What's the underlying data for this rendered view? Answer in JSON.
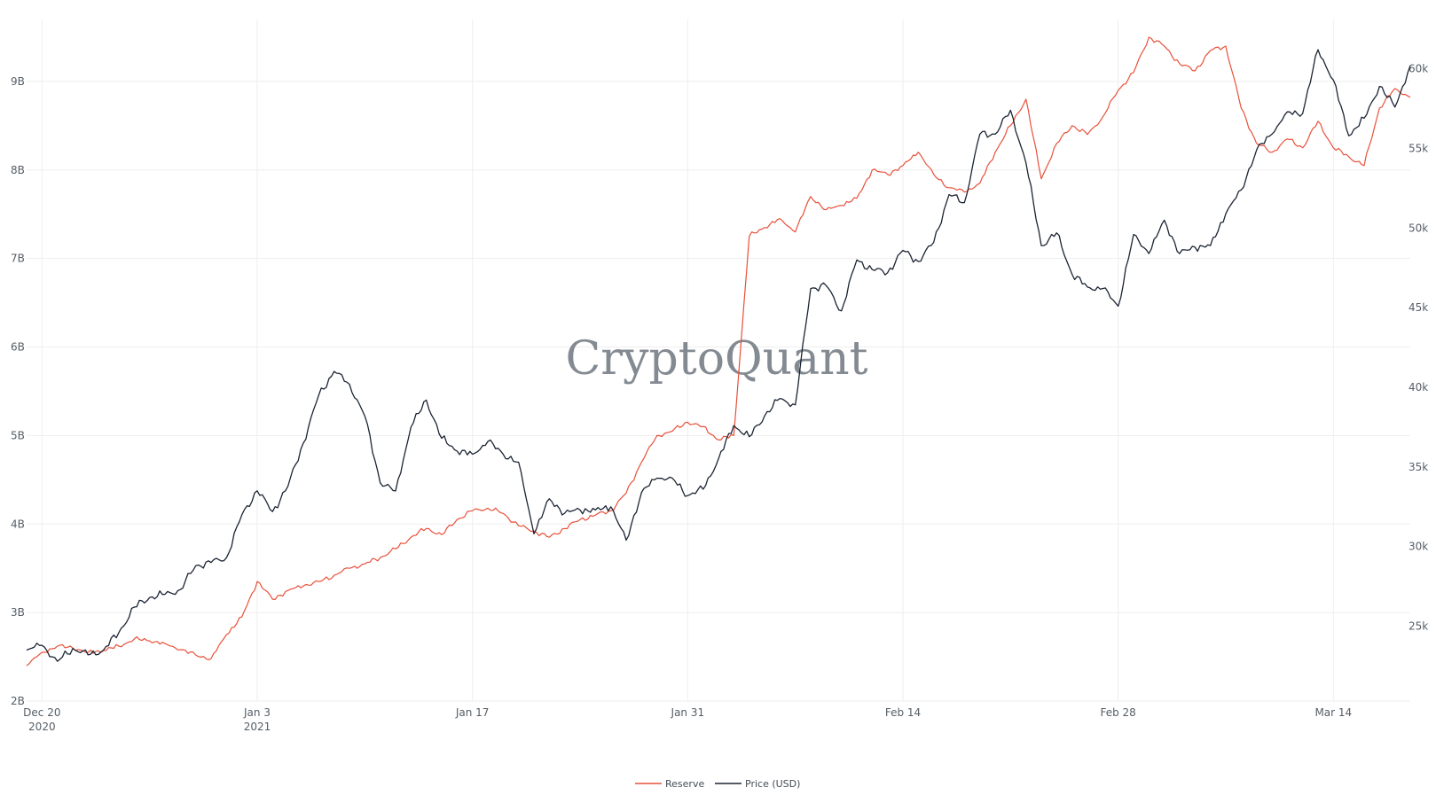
{
  "watermark": "CryptoQuant",
  "colors": {
    "reserve": "#e8503a",
    "price": "#1b2433",
    "grid": "#eeeeee"
  },
  "chart_data": {
    "type": "line",
    "title": "",
    "x_ticks": [
      {
        "label": "Dec 20",
        "sub": "2020",
        "date": "2020-12-20"
      },
      {
        "label": "Jan 3",
        "sub": "2021",
        "date": "2021-01-03"
      },
      {
        "label": "Jan 17",
        "sub": "",
        "date": "2021-01-17"
      },
      {
        "label": "Jan 31",
        "sub": "",
        "date": "2021-01-31"
      },
      {
        "label": "Feb 14",
        "sub": "",
        "date": "2021-02-14"
      },
      {
        "label": "Feb 28",
        "sub": "",
        "date": "2021-02-28"
      },
      {
        "label": "Mar 14",
        "sub": "",
        "date": "2021-03-14"
      }
    ],
    "xlim": [
      "2020-12-19",
      "2021-03-19"
    ],
    "y_left": {
      "ticks": [
        "2B",
        "3B",
        "4B",
        "5B",
        "6B",
        "7B",
        "8B",
        "9B"
      ],
      "values": [
        2,
        3,
        4,
        5,
        6,
        7,
        8,
        9
      ],
      "range": [
        2,
        9.7
      ],
      "unit": "B"
    },
    "y_right": {
      "ticks": [
        "25k",
        "30k",
        "35k",
        "40k",
        "45k",
        "50k",
        "55k",
        "60k"
      ],
      "values": [
        25,
        30,
        35,
        40,
        45,
        50,
        55,
        60
      ],
      "range": [
        20.3,
        63.1
      ],
      "unit": "k"
    },
    "legend": {
      "placement": "bottom-center"
    },
    "series": [
      {
        "name": "Reserve",
        "axis": "left",
        "color": "#e8503a",
        "points": [
          [
            "2020-12-19",
            2.4
          ],
          [
            "2020-12-20",
            2.55
          ],
          [
            "2020-12-21",
            2.62
          ],
          [
            "2020-12-22",
            2.6
          ],
          [
            "2020-12-23",
            2.55
          ],
          [
            "2020-12-24",
            2.57
          ],
          [
            "2020-12-25",
            2.62
          ],
          [
            "2020-12-26",
            2.7
          ],
          [
            "2020-12-27",
            2.68
          ],
          [
            "2020-12-28",
            2.65
          ],
          [
            "2020-12-29",
            2.58
          ],
          [
            "2020-12-30",
            2.52
          ],
          [
            "2020-12-31",
            2.48
          ],
          [
            "2021-01-01",
            2.75
          ],
          [
            "2021-01-02",
            2.95
          ],
          [
            "2021-01-03",
            3.35
          ],
          [
            "2021-01-04",
            3.15
          ],
          [
            "2021-01-05",
            3.25
          ],
          [
            "2021-01-06",
            3.3
          ],
          [
            "2021-01-07",
            3.35
          ],
          [
            "2021-01-08",
            3.42
          ],
          [
            "2021-01-09",
            3.5
          ],
          [
            "2021-01-10",
            3.55
          ],
          [
            "2021-01-11",
            3.62
          ],
          [
            "2021-01-12",
            3.72
          ],
          [
            "2021-01-13",
            3.85
          ],
          [
            "2021-01-14",
            3.95
          ],
          [
            "2021-01-15",
            3.88
          ],
          [
            "2021-01-16",
            4.05
          ],
          [
            "2021-01-17",
            4.15
          ],
          [
            "2021-01-18",
            4.18
          ],
          [
            "2021-01-19",
            4.12
          ],
          [
            "2021-01-20",
            3.98
          ],
          [
            "2021-01-21",
            3.92
          ],
          [
            "2021-01-22",
            3.85
          ],
          [
            "2021-01-23",
            3.95
          ],
          [
            "2021-01-24",
            4.05
          ],
          [
            "2021-01-25",
            4.1
          ],
          [
            "2021-01-26",
            4.15
          ],
          [
            "2021-01-27",
            4.35
          ],
          [
            "2021-01-28",
            4.7
          ],
          [
            "2021-01-29",
            5.0
          ],
          [
            "2021-01-30",
            5.05
          ],
          [
            "2021-01-31",
            5.15
          ],
          [
            "2021-02-01",
            5.1
          ],
          [
            "2021-02-02",
            4.95
          ],
          [
            "2021-02-03",
            5.0
          ],
          [
            "2021-02-04",
            7.25
          ],
          [
            "2021-02-05",
            7.35
          ],
          [
            "2021-02-06",
            7.45
          ],
          [
            "2021-02-07",
            7.3
          ],
          [
            "2021-02-08",
            7.7
          ],
          [
            "2021-02-09",
            7.55
          ],
          [
            "2021-02-10",
            7.6
          ],
          [
            "2021-02-11",
            7.68
          ],
          [
            "2021-02-12",
            8.0
          ],
          [
            "2021-02-13",
            7.95
          ],
          [
            "2021-02-14",
            8.05
          ],
          [
            "2021-02-15",
            8.2
          ],
          [
            "2021-02-16",
            7.95
          ],
          [
            "2021-02-17",
            7.8
          ],
          [
            "2021-02-18",
            7.75
          ],
          [
            "2021-02-19",
            7.85
          ],
          [
            "2021-02-20",
            8.2
          ],
          [
            "2021-02-21",
            8.5
          ],
          [
            "2021-02-22",
            8.8
          ],
          [
            "2021-02-23",
            7.9
          ],
          [
            "2021-02-24",
            8.3
          ],
          [
            "2021-02-25",
            8.5
          ],
          [
            "2021-02-26",
            8.4
          ],
          [
            "2021-02-27",
            8.6
          ],
          [
            "2021-02-28",
            8.9
          ],
          [
            "2021-03-01",
            9.1
          ],
          [
            "2021-03-02",
            9.5
          ],
          [
            "2021-03-03",
            9.4
          ],
          [
            "2021-03-04",
            9.2
          ],
          [
            "2021-03-05",
            9.12
          ],
          [
            "2021-03-06",
            9.35
          ],
          [
            "2021-03-07",
            9.4
          ],
          [
            "2021-03-08",
            8.7
          ],
          [
            "2021-03-09",
            8.3
          ],
          [
            "2021-03-10",
            8.2
          ],
          [
            "2021-03-11",
            8.35
          ],
          [
            "2021-03-12",
            8.25
          ],
          [
            "2021-03-13",
            8.55
          ],
          [
            "2021-03-14",
            8.25
          ],
          [
            "2021-03-15",
            8.15
          ],
          [
            "2021-03-16",
            8.05
          ],
          [
            "2021-03-17",
            8.7
          ],
          [
            "2021-03-18",
            8.92
          ],
          [
            "2021-03-19",
            8.82
          ]
        ]
      },
      {
        "name": "Price (USD)",
        "axis": "right",
        "color": "#1b2433",
        "points": [
          [
            "2020-12-19",
            23.5
          ],
          [
            "2020-12-20",
            23.8
          ],
          [
            "2020-12-21",
            22.8
          ],
          [
            "2020-12-22",
            23.6
          ],
          [
            "2020-12-23",
            23.2
          ],
          [
            "2020-12-24",
            23.5
          ],
          [
            "2020-12-25",
            24.6
          ],
          [
            "2020-12-26",
            26.2
          ],
          [
            "2020-12-27",
            26.8
          ],
          [
            "2020-12-28",
            27.0
          ],
          [
            "2020-12-29",
            27.3
          ],
          [
            "2020-12-30",
            28.8
          ],
          [
            "2020-12-31",
            29.0
          ],
          [
            "2021-01-01",
            29.3
          ],
          [
            "2021-01-02",
            32.0
          ],
          [
            "2021-01-03",
            33.5
          ],
          [
            "2021-01-04",
            32.2
          ],
          [
            "2021-01-05",
            33.8
          ],
          [
            "2021-01-06",
            36.5
          ],
          [
            "2021-01-07",
            39.5
          ],
          [
            "2021-01-08",
            41.0
          ],
          [
            "2021-01-09",
            40.2
          ],
          [
            "2021-01-10",
            38.2
          ],
          [
            "2021-01-11",
            34.0
          ],
          [
            "2021-01-12",
            33.5
          ],
          [
            "2021-01-13",
            37.5
          ],
          [
            "2021-01-14",
            39.2
          ],
          [
            "2021-01-15",
            36.8
          ],
          [
            "2021-01-16",
            36.0
          ],
          [
            "2021-01-17",
            35.8
          ],
          [
            "2021-01-18",
            36.6
          ],
          [
            "2021-01-19",
            35.8
          ],
          [
            "2021-01-20",
            35.3
          ],
          [
            "2021-01-21",
            30.8
          ],
          [
            "2021-01-22",
            33.0
          ],
          [
            "2021-01-23",
            32.1
          ],
          [
            "2021-01-24",
            32.3
          ],
          [
            "2021-01-25",
            32.3
          ],
          [
            "2021-01-26",
            32.5
          ],
          [
            "2021-01-27",
            30.4
          ],
          [
            "2021-01-28",
            33.4
          ],
          [
            "2021-01-29",
            34.3
          ],
          [
            "2021-01-30",
            34.3
          ],
          [
            "2021-01-31",
            33.2
          ],
          [
            "2021-02-01",
            33.6
          ],
          [
            "2021-02-02",
            35.5
          ],
          [
            "2021-02-03",
            37.6
          ],
          [
            "2021-02-04",
            36.9
          ],
          [
            "2021-02-05",
            38.2
          ],
          [
            "2021-02-06",
            39.3
          ],
          [
            "2021-02-07",
            38.9
          ],
          [
            "2021-02-08",
            46.2
          ],
          [
            "2021-02-09",
            46.4
          ],
          [
            "2021-02-10",
            44.8
          ],
          [
            "2021-02-11",
            48.0
          ],
          [
            "2021-02-12",
            47.4
          ],
          [
            "2021-02-13",
            47.2
          ],
          [
            "2021-02-14",
            48.6
          ],
          [
            "2021-02-15",
            47.9
          ],
          [
            "2021-02-16",
            49.1
          ],
          [
            "2021-02-17",
            52.1
          ],
          [
            "2021-02-18",
            51.6
          ],
          [
            "2021-02-19",
            55.9
          ],
          [
            "2021-02-20",
            55.9
          ],
          [
            "2021-02-21",
            57.4
          ],
          [
            "2021-02-22",
            54.1
          ],
          [
            "2021-02-23",
            48.9
          ],
          [
            "2021-02-24",
            49.7
          ],
          [
            "2021-02-25",
            47.1
          ],
          [
            "2021-02-26",
            46.3
          ],
          [
            "2021-02-27",
            46.2
          ],
          [
            "2021-02-28",
            45.1
          ],
          [
            "2021-03-01",
            49.6
          ],
          [
            "2021-03-02",
            48.4
          ],
          [
            "2021-03-03",
            50.5
          ],
          [
            "2021-03-04",
            48.4
          ],
          [
            "2021-03-05",
            48.8
          ],
          [
            "2021-03-06",
            48.9
          ],
          [
            "2021-03-07",
            50.9
          ],
          [
            "2021-03-08",
            52.4
          ],
          [
            "2021-03-09",
            54.9
          ],
          [
            "2021-03-10",
            55.9
          ],
          [
            "2021-03-11",
            57.3
          ],
          [
            "2021-03-12",
            57.2
          ],
          [
            "2021-03-13",
            61.2
          ],
          [
            "2021-03-14",
            59.3
          ],
          [
            "2021-03-15",
            55.8
          ],
          [
            "2021-03-16",
            56.9
          ],
          [
            "2021-03-17",
            58.9
          ],
          [
            "2021-03-18",
            57.6
          ],
          [
            "2021-03-19",
            60.2
          ]
        ]
      }
    ]
  }
}
